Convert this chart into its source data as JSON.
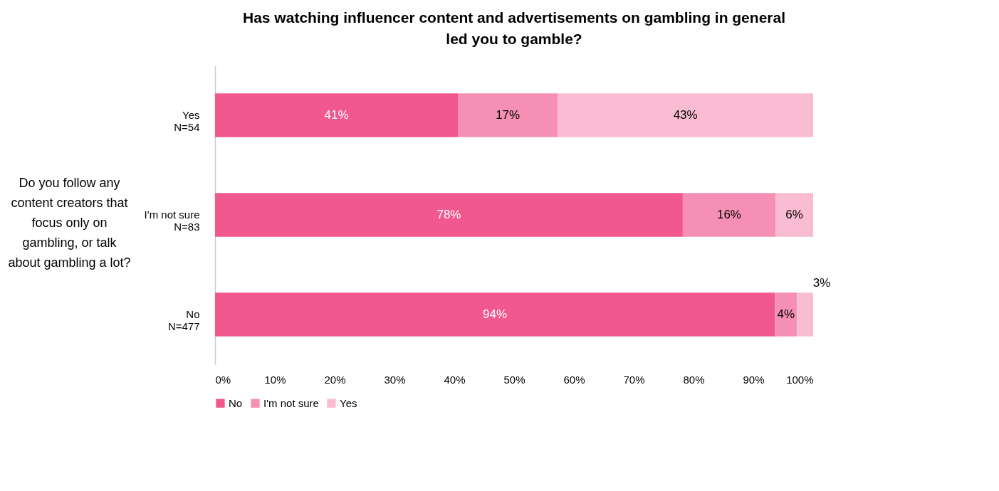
{
  "chart_data": {
    "type": "bar",
    "orientation": "horizontal",
    "stacked": true,
    "title": "Has watching influencer content and advertisements on gambling in general led you to gamble?",
    "ylabel": "Do you follow any content creators that focus only on gambling, or talk about gambling a lot?",
    "categories": [
      "Yes\nN=54",
      "I'm not sure\nN=83",
      "No\nN=477"
    ],
    "series": [
      {
        "name": "No",
        "color": "#f0588e",
        "values": [
          40.6,
          78.2,
          93.6
        ],
        "value_labels": [
          "41%",
          "78%",
          "94%"
        ]
      },
      {
        "name": "I'm not sure",
        "color": "#f590b4",
        "values": [
          16.7,
          15.5,
          3.7
        ],
        "value_labels": [
          "17%",
          "16%",
          "4%"
        ]
      },
      {
        "name": "Yes",
        "color": "#f9bcd2",
        "values": [
          42.7,
          6.3,
          2.7
        ],
        "value_labels": [
          "43%",
          "6%",
          "3%"
        ]
      }
    ],
    "xlim": [
      0,
      100
    ],
    "xticks": [
      {
        "value": 0,
        "label": "0%"
      },
      {
        "value": 10,
        "label": "10%"
      },
      {
        "value": 20,
        "label": "20%"
      },
      {
        "value": 30,
        "label": "30%"
      },
      {
        "value": 40,
        "label": "40%"
      },
      {
        "value": 50,
        "label": "50%"
      },
      {
        "value": 60,
        "label": "60%"
      },
      {
        "value": 70,
        "label": "70%"
      },
      {
        "value": 80,
        "label": "80%"
      },
      {
        "value": 90,
        "label": "90%"
      },
      {
        "value": 100,
        "label": "100%"
      }
    ],
    "grid": false,
    "legend": "bottom"
  }
}
